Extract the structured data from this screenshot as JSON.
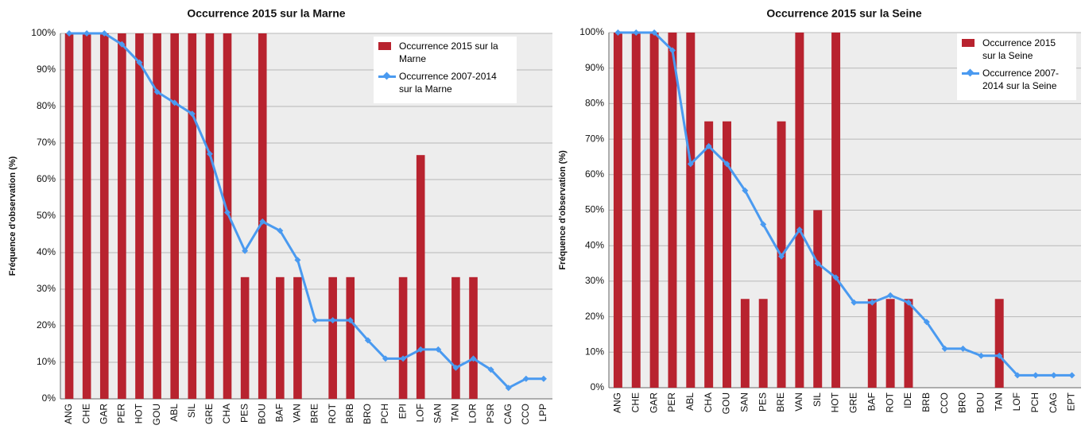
{
  "chart_data": [
    {
      "type": "bar",
      "title": "Occurrence 2015 sur la Marne",
      "ylabel": "Fréquence d'observation (%)",
      "categories": [
        "ANG",
        "CHE",
        "GAR",
        "PER",
        "HOT",
        "GOU",
        "ABL",
        "SIL",
        "GRE",
        "CHA",
        "PES",
        "BOU",
        "BAF",
        "VAN",
        "BRE",
        "ROT",
        "BRB",
        "BRO",
        "PCH",
        "EPI",
        "LOF",
        "SAN",
        "TAN",
        "LOR",
        "PSR",
        "CAG",
        "CCO",
        "LPP"
      ],
      "series": [
        {
          "name": "Occurrence 2015 sur la Marne",
          "type": "bar",
          "color": "#b8232f",
          "values": [
            100,
            100,
            100,
            100,
            100,
            100,
            100,
            100,
            100,
            100,
            33.3,
            100,
            33.3,
            33.3,
            0,
            33.3,
            33.3,
            0,
            0,
            33.3,
            66.7,
            0,
            33.3,
            33.3,
            0,
            0,
            0,
            0
          ]
        },
        {
          "name": "Occurrence 2007-2014 sur la Marne",
          "type": "line",
          "color": "#4a9af0",
          "values": [
            100,
            100,
            100,
            97,
            92,
            84,
            81,
            78,
            67,
            51,
            40.5,
            48.5,
            46,
            38,
            21.5,
            21.5,
            21.5,
            16,
            11,
            11,
            13.5,
            13.5,
            8.5,
            11,
            8,
            3,
            5.5,
            5.5
          ]
        }
      ],
      "ylim": [
        0,
        100
      ],
      "yticks": [
        {
          "value": 0,
          "label": "0%"
        },
        {
          "value": 10,
          "label": "10%"
        },
        {
          "value": 20,
          "label": "20%"
        },
        {
          "value": 30,
          "label": "30%"
        },
        {
          "value": 40,
          "label": "40%"
        },
        {
          "value": 50,
          "label": "50%"
        },
        {
          "value": 60,
          "label": "60%"
        },
        {
          "value": 70,
          "label": "70%"
        },
        {
          "value": 80,
          "label": "80%"
        },
        {
          "value": 90,
          "label": "90%"
        },
        {
          "value": 100,
          "label": "100%"
        }
      ],
      "grid": true,
      "legend": "upper right"
    },
    {
      "type": "bar",
      "title": "Occurrence 2015 sur la Seine",
      "ylabel": "Fréquence d'observation (%)",
      "categories": [
        "ANG",
        "CHE",
        "GAR",
        "PER",
        "ABL",
        "CHA",
        "GOU",
        "SAN",
        "PES",
        "BRE",
        "VAN",
        "SIL",
        "HOT",
        "GRE",
        "BAF",
        "ROT",
        "IDE",
        "BRB",
        "CCO",
        "BRO",
        "BOU",
        "TAN",
        "LOF",
        "PCH",
        "CAG",
        "EPT"
      ],
      "series": [
        {
          "name": "Occurrence 2015 sur la Seine",
          "type": "bar",
          "color": "#b8232f",
          "values": [
            100,
            100,
            100,
            100,
            100,
            75,
            75,
            25,
            25,
            75,
            100,
            50,
            100,
            0,
            25,
            25,
            25,
            0,
            0,
            0,
            0,
            25,
            0,
            0,
            0,
            0
          ]
        },
        {
          "name": "Occurrence 2007-2014 sur la Seine",
          "type": "line",
          "color": "#4a9af0",
          "values": [
            100,
            100,
            100,
            95,
            63,
            68,
            63,
            55.5,
            46,
            37,
            44.5,
            35,
            31,
            24,
            24,
            26,
            24,
            18.5,
            11,
            11,
            9,
            9,
            3.5,
            3.5,
            3.5,
            3.5
          ]
        }
      ],
      "ylim": [
        0,
        100
      ],
      "yticks": [
        {
          "value": 0,
          "label": "0%"
        },
        {
          "value": 10,
          "label": "10%"
        },
        {
          "value": 20,
          "label": "20%"
        },
        {
          "value": 30,
          "label": "30%"
        },
        {
          "value": 40,
          "label": "40%"
        },
        {
          "value": 50,
          "label": "50%"
        },
        {
          "value": 60,
          "label": "60%"
        },
        {
          "value": 70,
          "label": "70%"
        },
        {
          "value": 80,
          "label": "80%"
        },
        {
          "value": 90,
          "label": "90%"
        },
        {
          "value": 100,
          "label": "100%"
        }
      ],
      "grid": true,
      "legend": "upper right"
    }
  ]
}
